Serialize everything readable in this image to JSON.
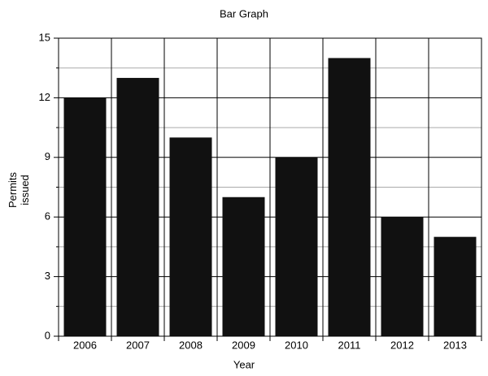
{
  "chart_data": {
    "type": "bar",
    "title": "Bar Graph",
    "xlabel": "Year",
    "ylabel": "Permits issued",
    "categories": [
      "2006",
      "2007",
      "2008",
      "2009",
      "2010",
      "2011",
      "2012",
      "2013"
    ],
    "values": [
      12,
      13,
      10,
      7,
      9,
      14,
      6,
      5
    ],
    "color": "#111111",
    "ylim": [
      0,
      15
    ],
    "yticks": [
      0,
      3,
      6,
      9,
      12,
      15
    ],
    "minor_yticks": [
      1.5,
      4.5,
      7.5,
      10.5,
      13.5
    ],
    "grid": true
  }
}
